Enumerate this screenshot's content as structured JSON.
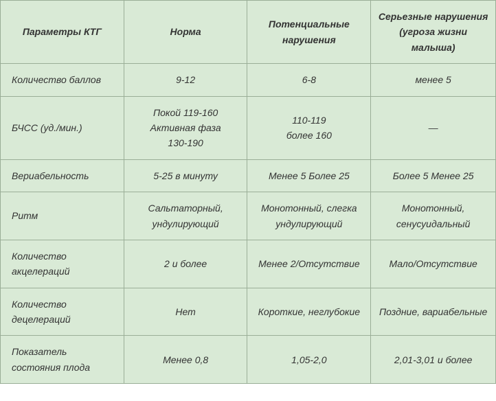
{
  "table": {
    "background_color": "#d9ead6",
    "border_color": "#9aae97",
    "text_color": "#333333",
    "font_style": "italic",
    "font_size": 14,
    "columns": [
      "Параметры КТГ",
      "Норма",
      "Потенциальные нарушения",
      "Серьезные нарушения (угроза жизни малыша)"
    ],
    "rows": [
      {
        "param": "Количество баллов",
        "norm": "9-12",
        "potential": "6-8",
        "serious": "менее 5"
      },
      {
        "param": "БЧСС (уд./мин.)",
        "norm": "Покой 119-160\nАктивная фаза\n130-190",
        "potential": "110-119\nболее 160",
        "serious": "—"
      },
      {
        "param": "Вериабельность",
        "norm": "5-25 в минуту",
        "potential": "Менее 5 Более 25",
        "serious": "Более 5 Менее 25"
      },
      {
        "param": "Ритм",
        "norm": "Сальтаторный, ундулирующий",
        "potential": "Монотонный, слегка ундулирующий",
        "serious": "Монотонный, сенусуидальный"
      },
      {
        "param": "Количество акцелераций",
        "norm": "2 и более",
        "potential": "Менее 2/Отсутствие",
        "serious": "Мало/Отсутствие"
      },
      {
        "param": "Количество децелераций",
        "norm": "Нет",
        "potential": "Короткие, неглубокие",
        "serious": "Поздние, вариабельные"
      },
      {
        "param": "Показатель состояния плода",
        "norm": "Менее 0,8",
        "potential": "1,05-2,0",
        "serious": "2,01-3,01 и более"
      }
    ]
  }
}
